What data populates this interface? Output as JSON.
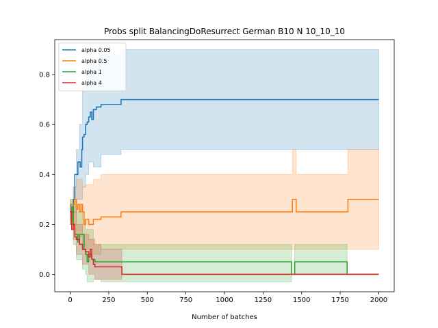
{
  "chart_data": {
    "type": "line",
    "title": "Probs split BalancingDoResurrect German B10 N 10_10_10",
    "xlabel": "Number of batches",
    "ylabel": "",
    "xlim": [
      -100,
      2100
    ],
    "ylim": [
      -0.07,
      0.94
    ],
    "xticks": [
      0,
      250,
      500,
      750,
      1000,
      1250,
      1500,
      1750,
      2000
    ],
    "yticks": [
      0.0,
      0.2,
      0.4,
      0.6,
      0.8
    ],
    "ytick_labels": [
      "0.0",
      "0.2",
      "0.4",
      "0.6",
      "0.8"
    ],
    "legend_position": "top-left",
    "grid": false,
    "series": [
      {
        "name": "alpha 0.05",
        "color": "#1f77b4",
        "band_color": "#1f77b4",
        "points": [
          [
            0,
            0.25
          ],
          [
            10,
            0.25
          ],
          [
            20,
            0.3
          ],
          [
            30,
            0.4
          ],
          [
            45,
            0.4
          ],
          [
            50,
            0.45
          ],
          [
            60,
            0.45
          ],
          [
            65,
            0.43
          ],
          [
            75,
            0.5
          ],
          [
            80,
            0.55
          ],
          [
            90,
            0.56
          ],
          [
            100,
            0.6
          ],
          [
            110,
            0.61
          ],
          [
            120,
            0.63
          ],
          [
            130,
            0.65
          ],
          [
            140,
            0.62
          ],
          [
            150,
            0.66
          ],
          [
            170,
            0.67
          ],
          [
            200,
            0.68
          ],
          [
            300,
            0.68
          ],
          [
            330,
            0.7
          ],
          [
            2000,
            0.7
          ]
        ],
        "upper": [
          [
            0,
            0.28
          ],
          [
            20,
            0.35
          ],
          [
            40,
            0.5
          ],
          [
            60,
            0.6
          ],
          [
            80,
            0.75
          ],
          [
            100,
            0.8
          ],
          [
            120,
            0.83
          ],
          [
            150,
            0.86
          ],
          [
            200,
            0.88
          ],
          [
            330,
            0.9
          ],
          [
            2000,
            0.9
          ]
        ],
        "lower": [
          [
            0,
            0.22
          ],
          [
            20,
            0.25
          ],
          [
            40,
            0.3
          ],
          [
            60,
            0.3
          ],
          [
            80,
            0.35
          ],
          [
            100,
            0.4
          ],
          [
            120,
            0.45
          ],
          [
            150,
            0.43
          ],
          [
            200,
            0.48
          ],
          [
            330,
            0.5
          ],
          [
            2000,
            0.5
          ]
        ]
      },
      {
        "name": "alpha 0.5",
        "color": "#ff7f0e",
        "band_color": "#ff7f0e",
        "points": [
          [
            0,
            0.25
          ],
          [
            10,
            0.24
          ],
          [
            20,
            0.28
          ],
          [
            30,
            0.3
          ],
          [
            40,
            0.26
          ],
          [
            50,
            0.28
          ],
          [
            60,
            0.25
          ],
          [
            70,
            0.28
          ],
          [
            80,
            0.25
          ],
          [
            90,
            0.2
          ],
          [
            100,
            0.22
          ],
          [
            120,
            0.2
          ],
          [
            150,
            0.22
          ],
          [
            200,
            0.23
          ],
          [
            300,
            0.23
          ],
          [
            330,
            0.25
          ],
          [
            1430,
            0.25
          ],
          [
            1440,
            0.3
          ],
          [
            1460,
            0.3
          ],
          [
            1465,
            0.25
          ],
          [
            1790,
            0.25
          ],
          [
            1800,
            0.3
          ],
          [
            2000,
            0.3
          ]
        ],
        "upper": [
          [
            0,
            0.3
          ],
          [
            20,
            0.35
          ],
          [
            40,
            0.38
          ],
          [
            80,
            0.35
          ],
          [
            100,
            0.36
          ],
          [
            150,
            0.38
          ],
          [
            200,
            0.4
          ],
          [
            330,
            0.4
          ],
          [
            1430,
            0.4
          ],
          [
            1440,
            0.5
          ],
          [
            1460,
            0.5
          ],
          [
            1465,
            0.4
          ],
          [
            1790,
            0.4
          ],
          [
            1800,
            0.5
          ],
          [
            2000,
            0.5
          ]
        ],
        "lower": [
          [
            0,
            0.2
          ],
          [
            20,
            0.18
          ],
          [
            40,
            0.15
          ],
          [
            80,
            0.12
          ],
          [
            100,
            0.1
          ],
          [
            150,
            0.08
          ],
          [
            200,
            0.1
          ],
          [
            330,
            0.1
          ],
          [
            1430,
            0.1
          ],
          [
            1440,
            0.1
          ],
          [
            1800,
            0.1
          ],
          [
            2000,
            0.1
          ]
        ]
      },
      {
        "name": "alpha 1",
        "color": "#2ca02c",
        "band_color": "#2ca02c",
        "points": [
          [
            0,
            0.25
          ],
          [
            10,
            0.27
          ],
          [
            20,
            0.2
          ],
          [
            30,
            0.16
          ],
          [
            40,
            0.16
          ],
          [
            50,
            0.13
          ],
          [
            60,
            0.16
          ],
          [
            80,
            0.16
          ],
          [
            90,
            0.1
          ],
          [
            100,
            0.08
          ],
          [
            110,
            0.05
          ],
          [
            120,
            0.08
          ],
          [
            140,
            0.06
          ],
          [
            160,
            0.05
          ],
          [
            200,
            0.05
          ],
          [
            330,
            0.05
          ],
          [
            1430,
            0.05
          ],
          [
            1435,
            0.0
          ],
          [
            1450,
            0.0
          ],
          [
            1455,
            0.05
          ],
          [
            1790,
            0.05
          ],
          [
            1795,
            0.0
          ],
          [
            2000,
            0.0
          ]
        ],
        "upper": [
          [
            0,
            0.3
          ],
          [
            20,
            0.28
          ],
          [
            40,
            0.25
          ],
          [
            80,
            0.22
          ],
          [
            100,
            0.18
          ],
          [
            150,
            0.12
          ],
          [
            200,
            0.12
          ],
          [
            330,
            0.12
          ],
          [
            1430,
            0.12
          ],
          [
            1435,
            0.0
          ],
          [
            1450,
            0.0
          ],
          [
            1455,
            0.12
          ],
          [
            1790,
            0.12
          ],
          [
            1795,
            0.0
          ],
          [
            2000,
            0.0
          ]
        ],
        "lower": [
          [
            0,
            0.2
          ],
          [
            20,
            0.12
          ],
          [
            40,
            0.06
          ],
          [
            80,
            0.02
          ],
          [
            100,
            0.0
          ],
          [
            110,
            -0.03
          ],
          [
            150,
            -0.02
          ],
          [
            200,
            -0.03
          ],
          [
            330,
            -0.03
          ],
          [
            1430,
            -0.03
          ],
          [
            1435,
            0.0
          ],
          [
            2000,
            0.0
          ]
        ]
      },
      {
        "name": "alpha 4",
        "color": "#d62728",
        "band_color": "#d62728",
        "points": [
          [
            0,
            0.25
          ],
          [
            10,
            0.18
          ],
          [
            20,
            0.2
          ],
          [
            30,
            0.15
          ],
          [
            40,
            0.14
          ],
          [
            50,
            0.14
          ],
          [
            60,
            0.12
          ],
          [
            80,
            0.1
          ],
          [
            100,
            0.09
          ],
          [
            120,
            0.07
          ],
          [
            130,
            0.1
          ],
          [
            140,
            0.06
          ],
          [
            150,
            0.04
          ],
          [
            160,
            0.03
          ],
          [
            200,
            0.03
          ],
          [
            330,
            0.03
          ],
          [
            335,
            0.0
          ],
          [
            2000,
            0.0
          ]
        ],
        "upper": [
          [
            0,
            0.28
          ],
          [
            20,
            0.25
          ],
          [
            40,
            0.2
          ],
          [
            80,
            0.16
          ],
          [
            120,
            0.14
          ],
          [
            160,
            0.12
          ],
          [
            200,
            0.1
          ],
          [
            330,
            0.1
          ],
          [
            335,
            0.0
          ],
          [
            2000,
            0.0
          ]
        ],
        "lower": [
          [
            0,
            0.2
          ],
          [
            20,
            0.14
          ],
          [
            40,
            0.08
          ],
          [
            80,
            0.04
          ],
          [
            120,
            0.0
          ],
          [
            160,
            -0.02
          ],
          [
            200,
            -0.02
          ],
          [
            330,
            -0.02
          ],
          [
            335,
            0.0
          ],
          [
            2000,
            0.0
          ]
        ]
      }
    ]
  }
}
